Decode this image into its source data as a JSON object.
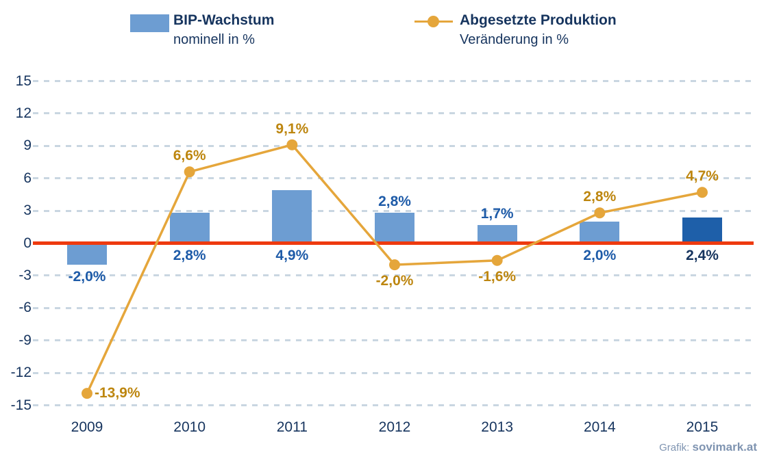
{
  "legend": {
    "series1": {
      "title": "BIP-Wachstum",
      "subtitle": "nominell in %"
    },
    "series2": {
      "title": "Abgesetzte Produktion",
      "subtitle": "Veränderung in %"
    }
  },
  "credit": {
    "prefix": "Grafik:",
    "brand": "sovimark.at"
  },
  "colors": {
    "bar_blue": "#6D9DD2",
    "bar_highlight": "#1E5FA9",
    "bar_label_blue": "#1E5BA8",
    "navy": "#16345E",
    "line_orange": "#E5A63B",
    "line_label_gold": "#BD860F",
    "zero_red": "#EE3A0F",
    "grid": "#C9D6E1",
    "credit_gray": "#7F94B1"
  },
  "chart_data": {
    "type": "bar",
    "title": "",
    "categories": [
      "2009",
      "2010",
      "2011",
      "2012",
      "2013",
      "2014",
      "2015"
    ],
    "series": [
      {
        "name": "BIP-Wachstum nominell in %",
        "type": "bar",
        "values": [
          -2.0,
          2.8,
          4.9,
          2.8,
          1.7,
          2.0,
          2.4
        ],
        "labels": [
          "-2,0%",
          "2,8%",
          "4,9%",
          "2,8%",
          "1,7%",
          "2,0%",
          "2,4%"
        ],
        "label_pos": [
          "below",
          "below",
          "below",
          "above",
          "above",
          "below",
          "below"
        ],
        "highlight_index": 6
      },
      {
        "name": "Abgesetzte Produktion Veränderung in %",
        "type": "line",
        "values": [
          -13.9,
          6.6,
          9.1,
          -2.0,
          -1.6,
          2.8,
          4.7
        ],
        "labels": [
          "-13,9%",
          "6,6%",
          "9,1%",
          "-2,0%",
          "-1,6%",
          "2,8%",
          "4,7%"
        ],
        "label_pos": [
          "right",
          "above",
          "above",
          "below",
          "below",
          "above",
          "above"
        ]
      }
    ],
    "xlabel": "",
    "ylabel": "",
    "ylim": [
      -15,
      15
    ],
    "yticks": [
      15,
      12,
      9,
      6,
      3,
      0,
      -3,
      -6,
      -9,
      -12,
      -15
    ],
    "grid": "dashed-horizontal",
    "zero_line": true,
    "legend_position": "top"
  }
}
